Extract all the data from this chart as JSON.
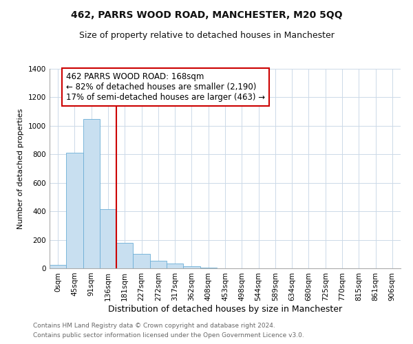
{
  "title": "462, PARRS WOOD ROAD, MANCHESTER, M20 5QQ",
  "subtitle": "Size of property relative to detached houses in Manchester",
  "xlabel": "Distribution of detached houses by size in Manchester",
  "ylabel": "Number of detached properties",
  "bar_values": [
    25,
    810,
    1050,
    415,
    180,
    100,
    55,
    35,
    15,
    5,
    0,
    0,
    0,
    0,
    0,
    0,
    0,
    0,
    0,
    0,
    0
  ],
  "bin_labels": [
    "0sqm",
    "45sqm",
    "91sqm",
    "136sqm",
    "181sqm",
    "227sqm",
    "272sqm",
    "317sqm",
    "362sqm",
    "408sqm",
    "453sqm",
    "498sqm",
    "544sqm",
    "589sqm",
    "634sqm",
    "680sqm",
    "725sqm",
    "770sqm",
    "815sqm",
    "861sqm",
    "906sqm"
  ],
  "bar_color": "#c8dff0",
  "bar_edge_color": "#6baed6",
  "vline_x": 3.5,
  "vline_color": "#cc0000",
  "annotation_text": "462 PARRS WOOD ROAD: 168sqm\n← 82% of detached houses are smaller (2,190)\n17% of semi-detached houses are larger (463) →",
  "annotation_box_edgecolor": "#cc0000",
  "annotation_fontsize": 8.5,
  "ylim": [
    0,
    1400
  ],
  "yticks": [
    0,
    200,
    400,
    600,
    800,
    1000,
    1200,
    1400
  ],
  "footer_line1": "Contains HM Land Registry data © Crown copyright and database right 2024.",
  "footer_line2": "Contains public sector information licensed under the Open Government Licence v3.0.",
  "background_color": "#ffffff",
  "grid_color": "#ccd9e8",
  "title_fontsize": 10,
  "subtitle_fontsize": 9,
  "xlabel_fontsize": 9,
  "ylabel_fontsize": 8,
  "tick_fontsize": 7.5,
  "footer_fontsize": 6.5
}
